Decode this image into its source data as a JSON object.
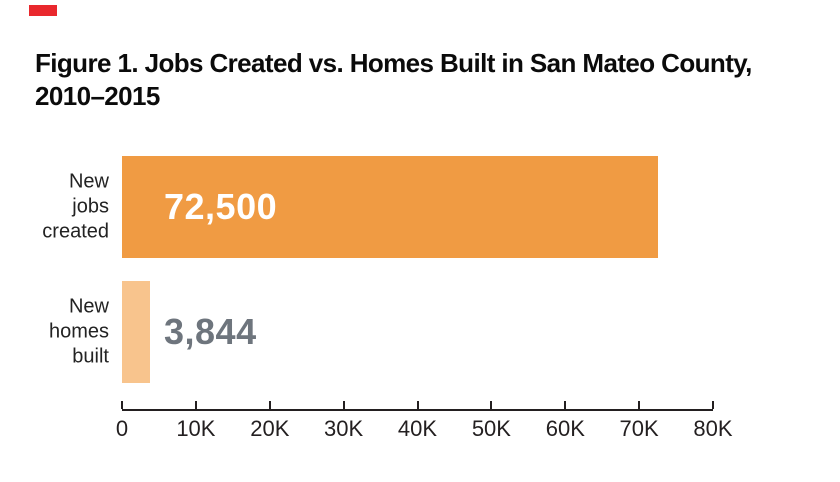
{
  "figure": {
    "red_mark_color": "#E9282D",
    "title_lines": [
      "Figure 1. Jobs Created vs. Homes Built in San Mateo County,",
      "2010–2015"
    ]
  },
  "chart_data": {
    "type": "bar",
    "orientation": "horizontal",
    "title": "Figure 1. Jobs Created vs. Homes Built in San Mateo County, 2010–2015",
    "categories": [
      "New jobs created",
      "New homes built"
    ],
    "categories_multiline": [
      "New\njobs\ncreated",
      "New\nhomes\nbuilt"
    ],
    "values": [
      72500,
      3844
    ],
    "value_labels": [
      "72,500",
      "3,844"
    ],
    "xlim": [
      0,
      80000
    ],
    "x_tick_values": [
      0,
      10000,
      20000,
      30000,
      40000,
      50000,
      60000,
      70000,
      80000
    ],
    "x_tick_labels": [
      "0",
      "10K",
      "20K",
      "30K",
      "40K",
      "50K",
      "60K",
      "70K",
      "80K"
    ],
    "xlabel": "",
    "ylabel": "",
    "grid": false,
    "legend": false,
    "bar_colors": [
      "#F09B43",
      "#F8C48D"
    ],
    "value_label_colors": [
      "#FFFFFF",
      "#6E757D"
    ],
    "axis_color": "#231F20"
  }
}
